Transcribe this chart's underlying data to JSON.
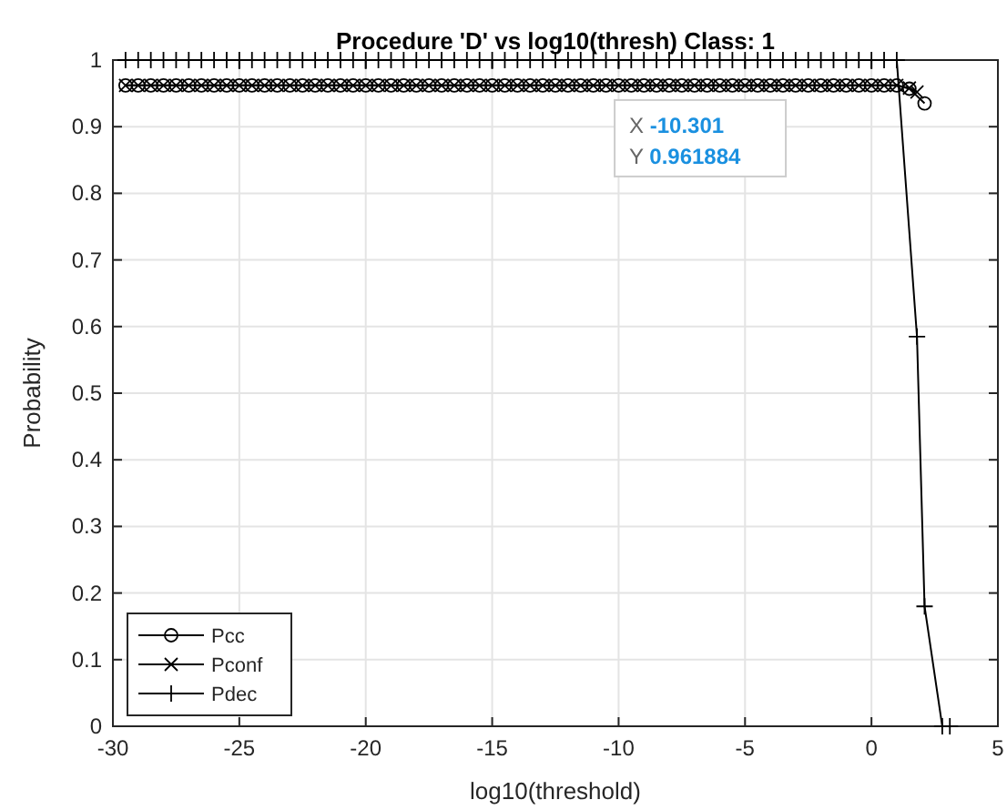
{
  "chart_data": {
    "type": "line",
    "title": "Procedure 'D' vs log10(thresh) Class: 1",
    "xlabel": "log10(threshold)",
    "ylabel": "Probability",
    "xlim": [
      -30,
      5
    ],
    "xticks": [
      -30,
      -25,
      -20,
      -15,
      -10,
      -5,
      0,
      5
    ],
    "ylim": [
      0,
      1
    ],
    "yticks": [
      0,
      0.1,
      0.2,
      0.3,
      0.4,
      0.5,
      0.6,
      0.7,
      0.8,
      0.9,
      1
    ],
    "grid": true,
    "legend": "bottom left",
    "annotations": [
      {
        "text": "X -10.301\nY 0.961884",
        "x": -10.301,
        "y": 0.961884
      }
    ],
    "series": [
      {
        "name": "Pcc",
        "color": "#000000",
        "marker": "circle",
        "x": [
          -29.5,
          -29,
          -28.5,
          -28,
          -27.5,
          -27,
          -26.5,
          -26,
          -25.5,
          -25,
          -24.5,
          -24,
          -23.5,
          -23,
          -22.5,
          -22,
          -21.5,
          -21,
          -20.5,
          -20,
          -19.5,
          -19,
          -18.5,
          -18,
          -17.5,
          -17,
          -16.5,
          -16,
          -15.5,
          -15,
          -14.5,
          -14,
          -13.5,
          -13,
          -12.5,
          -12,
          -11.5,
          -11,
          -10.5,
          -10,
          -9.5,
          -9,
          -8.5,
          -8,
          -7.5,
          -7,
          -6.5,
          -6,
          -5.5,
          -5,
          -4.5,
          -4,
          -3.5,
          -3,
          -2.5,
          -2,
          -1.5,
          -1,
          -0.5,
          0,
          0.5,
          1,
          1.5,
          2.1
        ],
        "values": [
          0.962,
          0.962,
          0.962,
          0.962,
          0.962,
          0.962,
          0.962,
          0.962,
          0.962,
          0.962,
          0.962,
          0.962,
          0.962,
          0.962,
          0.962,
          0.962,
          0.962,
          0.962,
          0.962,
          0.962,
          0.962,
          0.962,
          0.962,
          0.962,
          0.962,
          0.962,
          0.962,
          0.962,
          0.962,
          0.962,
          0.962,
          0.962,
          0.962,
          0.962,
          0.962,
          0.962,
          0.962,
          0.962,
          0.962,
          0.962,
          0.962,
          0.962,
          0.962,
          0.962,
          0.962,
          0.962,
          0.962,
          0.962,
          0.962,
          0.962,
          0.962,
          0.962,
          0.962,
          0.962,
          0.962,
          0.962,
          0.962,
          0.962,
          0.962,
          0.962,
          0.962,
          0.962,
          0.957,
          0.935
        ]
      },
      {
        "name": "Pconf",
        "color": "#000000",
        "marker": "x",
        "x": [
          -29.5,
          -29,
          -28.5,
          -28,
          -27.5,
          -27,
          -26.5,
          -26,
          -25.5,
          -25,
          -24.5,
          -24,
          -23.5,
          -23,
          -22.5,
          -22,
          -21.5,
          -21,
          -20.5,
          -20,
          -19.5,
          -19,
          -18.5,
          -18,
          -17.5,
          -17,
          -16.5,
          -16,
          -15.5,
          -15,
          -14.5,
          -14,
          -13.5,
          -13,
          -12.5,
          -12,
          -11.5,
          -11,
          -10.5,
          -10,
          -9.5,
          -9,
          -8.5,
          -8,
          -7.5,
          -7,
          -6.5,
          -6,
          -5.5,
          -5,
          -4.5,
          -4,
          -3.5,
          -3,
          -2.5,
          -2,
          -1.5,
          -1,
          -0.5,
          0,
          0.5,
          1,
          1.5,
          1.8
        ],
        "values": [
          0.962,
          0.962,
          0.962,
          0.962,
          0.962,
          0.962,
          0.962,
          0.962,
          0.962,
          0.962,
          0.962,
          0.962,
          0.962,
          0.962,
          0.962,
          0.962,
          0.962,
          0.962,
          0.962,
          0.962,
          0.962,
          0.962,
          0.962,
          0.962,
          0.962,
          0.962,
          0.962,
          0.962,
          0.962,
          0.962,
          0.962,
          0.962,
          0.962,
          0.962,
          0.962,
          0.962,
          0.962,
          0.962,
          0.962,
          0.962,
          0.962,
          0.962,
          0.962,
          0.962,
          0.962,
          0.962,
          0.962,
          0.962,
          0.962,
          0.962,
          0.962,
          0.962,
          0.962,
          0.962,
          0.962,
          0.962,
          0.962,
          0.962,
          0.962,
          0.962,
          0.962,
          0.962,
          0.958,
          0.952
        ]
      },
      {
        "name": "Pdec",
        "color": "#000000",
        "marker": "cross",
        "x": [
          -29.5,
          -29,
          -28.5,
          -28,
          -27.5,
          -27,
          -26.5,
          -26,
          -25.5,
          -25,
          -24.5,
          -24,
          -23.5,
          -23,
          -22.5,
          -22,
          -21.5,
          -21,
          -20.5,
          -20,
          -19.5,
          -19,
          -18.5,
          -18,
          -17.5,
          -17,
          -16.5,
          -16,
          -15.5,
          -15,
          -14.5,
          -14,
          -13.5,
          -13,
          -12.5,
          -12,
          -11.5,
          -11,
          -10.5,
          -10,
          -9.5,
          -9,
          -8.5,
          -8,
          -7.5,
          -7,
          -6.5,
          -6,
          -5.5,
          -5,
          -4.5,
          -4,
          -3.5,
          -3,
          -2.5,
          -2,
          -1.5,
          -1,
          -0.5,
          0,
          0.5,
          1,
          1.8,
          2.1,
          2.8,
          3.1
        ],
        "values": [
          1,
          1,
          1,
          1,
          1,
          1,
          1,
          1,
          1,
          1,
          1,
          1,
          1,
          1,
          1,
          1,
          1,
          1,
          1,
          1,
          1,
          1,
          1,
          1,
          1,
          1,
          1,
          1,
          1,
          1,
          1,
          1,
          1,
          1,
          1,
          1,
          1,
          1,
          1,
          1,
          1,
          1,
          1,
          1,
          1,
          1,
          1,
          1,
          1,
          1,
          1,
          1,
          1,
          1,
          1,
          1,
          1,
          1,
          1,
          1,
          1,
          1,
          0.585,
          0.18,
          0,
          0
        ]
      }
    ]
  }
}
